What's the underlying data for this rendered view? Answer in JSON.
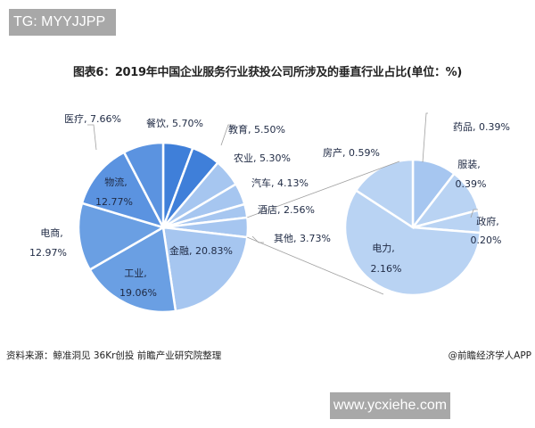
{
  "watermark_top": "TG: MYYJJPP",
  "title": "图表6：2019年中国企业服务行业获投公司所涉及的垂直行业占比(单位：%)",
  "source": "资料来源：鲸准洞见 36Kr创投 前瞻产业研究院整理",
  "credit": "@前瞻经济学人APP",
  "watermark_bottom": "www.ycxiehe.com",
  "colors": {
    "dark_blue": "#3f7fd9",
    "mid_blue": "#5b93e0",
    "medium_blue": "#6a9fe3",
    "light_blue": "#a6c6f0",
    "pale_blue": "#b9d3f3",
    "separator": "#ffffff",
    "leader": "#a0a0a0"
  },
  "chart_data": [
    {
      "type": "pie",
      "title": "2019年中国企业服务行业获投公司所涉及的垂直行业占比",
      "unit": "%",
      "categories": [
        "餐饮",
        "教育",
        "农业",
        "汽车",
        "酒店",
        "其他",
        "金融",
        "工业",
        "电商",
        "物流",
        "医疗"
      ],
      "values": [
        5.7,
        5.5,
        5.3,
        4.13,
        2.56,
        3.73,
        20.83,
        19.06,
        12.97,
        12.77,
        7.66
      ],
      "labels": [
        "餐饮, 5.70%",
        "教育, 5.50%",
        "农业, 5.30%",
        "汽车, 4.13%",
        "酒店, 2.56%",
        "其他, 3.73%",
        "金融, 20.83%",
        "工业, 19.06%",
        "电商, 12.97%",
        "物流, 12.77%",
        "医疗, 7.66%"
      ]
    },
    {
      "type": "pie",
      "title": "其他 breakdown",
      "unit": "%",
      "parent": "其他",
      "categories": [
        "药品",
        "服装",
        "政府",
        "电力",
        "房产"
      ],
      "values": [
        0.39,
        0.39,
        0.2,
        2.16,
        0.59
      ],
      "labels": [
        "药品, 0.39%",
        "服装, 0.39%",
        "政府, 0.20%",
        "电力, 2.16%",
        "房产, 0.59%"
      ]
    }
  ]
}
